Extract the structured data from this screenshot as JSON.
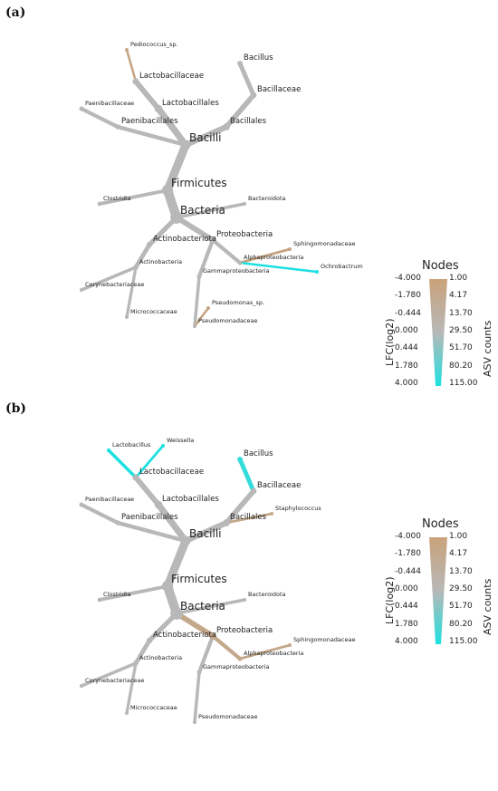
{
  "panels": [
    {
      "label": "(a)",
      "tree": {
        "taxa": [
          {
            "n": "Bacteria",
            "lfc": 0,
            "asv": 115
          },
          {
            "n": "Firmicutes",
            "lfc": 0,
            "asv": 90
          },
          {
            "n": "Bacilli",
            "lfc": 0,
            "asv": 70
          },
          {
            "n": "Lactobacillales",
            "lfc": 0,
            "asv": 40
          },
          {
            "n": "Lactobacillaceae",
            "lfc": 0,
            "asv": 25
          },
          {
            "n": "Bacillales",
            "lfc": 0,
            "asv": 30
          },
          {
            "n": "Bacillaceae",
            "lfc": 0,
            "asv": 22
          },
          {
            "n": "Bacillus",
            "lfc": 0,
            "asv": 15
          },
          {
            "n": "Paenibacillales",
            "lfc": 0,
            "asv": 12
          },
          {
            "n": "Paenibacillaceae",
            "lfc": 0,
            "asv": 10
          },
          {
            "n": "Clostridia",
            "lfc": 0,
            "asv": 8
          },
          {
            "n": "Proteobacteria",
            "lfc": 0,
            "asv": 25
          },
          {
            "n": "Actinobacteriota",
            "lfc": 0,
            "asv": 18
          },
          {
            "n": "Actinobacteria",
            "lfc": 0,
            "asv": 14
          },
          {
            "n": "Alphaproteobacteria",
            "lfc": 0,
            "asv": 10
          },
          {
            "n": "Gammaproteobacteria",
            "lfc": 0,
            "asv": 10
          },
          {
            "n": "Bacteroidota",
            "lfc": 0,
            "asv": 6
          },
          {
            "n": "Corynebacteriaceae",
            "lfc": 0,
            "asv": 6
          },
          {
            "n": "Micrococcaceae",
            "lfc": 0,
            "asv": 5
          },
          {
            "n": "Pseudomonadaceae",
            "lfc": 0,
            "asv": 6
          },
          {
            "n": "Sphingomonadaceae",
            "lfc": -3,
            "asv": 3
          },
          {
            "n": "Pediococcus_sp.",
            "lfc": -3,
            "asv": 2
          },
          {
            "n": "Pseudomonas_sp.",
            "lfc": -3,
            "asv": 2
          },
          {
            "n": "Ochrobactrum",
            "lfc": 4,
            "asv": 2
          }
        ]
      },
      "legend": {
        "title": "Nodes",
        "lfc_label": "LFC(log2)",
        "asv_label": "ASV counts",
        "lfc_ticks": [
          "-4.000",
          "-1.780",
          "-0.444",
          "0.000",
          "0.444",
          "1.780",
          "4.000"
        ],
        "asv_ticks": [
          "1.00",
          "4.17",
          "13.70",
          "29.50",
          "51.70",
          "80.20",
          "115.00"
        ]
      }
    },
    {
      "label": "(b)",
      "tree": {
        "taxa": [
          {
            "n": "Bacteria",
            "lfc": 0,
            "asv": 115
          },
          {
            "n": "Firmicutes",
            "lfc": 0,
            "asv": 90
          },
          {
            "n": "Bacilli",
            "lfc": 0,
            "asv": 70
          },
          {
            "n": "Lactobacillales",
            "lfc": 0,
            "asv": 40
          },
          {
            "n": "Lactobacillaceae",
            "lfc": 0,
            "asv": 25
          },
          {
            "n": "Bacillales",
            "lfc": 0,
            "asv": 30
          },
          {
            "n": "Bacillaceae",
            "lfc": 0,
            "asv": 22
          },
          {
            "n": "Bacillus",
            "lfc": 3,
            "asv": 15
          },
          {
            "n": "Paenibacillales",
            "lfc": 0,
            "asv": 12
          },
          {
            "n": "Paenibacillaceae",
            "lfc": 0,
            "asv": 10
          },
          {
            "n": "Clostridia",
            "lfc": 0,
            "asv": 8
          },
          {
            "n": "Proteobacteria",
            "lfc": -2,
            "asv": 25
          },
          {
            "n": "Actinobacteriota",
            "lfc": 0,
            "asv": 18
          },
          {
            "n": "Actinobacteria",
            "lfc": 0,
            "asv": 14
          },
          {
            "n": "Alphaproteobacteria",
            "lfc": -2,
            "asv": 10
          },
          {
            "n": "Gammaproteobacteria",
            "lfc": 0,
            "asv": 10
          },
          {
            "n": "Bacteroidota",
            "lfc": 0,
            "asv": 6
          },
          {
            "n": "Corynebacteriaceae",
            "lfc": 0,
            "asv": 6
          },
          {
            "n": "Micrococcaceae",
            "lfc": 0,
            "asv": 5
          },
          {
            "n": "Pseudomonadaceae",
            "lfc": 0,
            "asv": 6
          },
          {
            "n": "Lactobacillus",
            "lfc": 4,
            "asv": 6
          },
          {
            "n": "Weissella",
            "lfc": 4,
            "asv": 3
          },
          {
            "n": "Staphylococcus",
            "lfc": -2,
            "asv": 3
          },
          {
            "n": "Sphingomonadaceae",
            "lfc": -2,
            "asv": 3
          }
        ]
      },
      "legend": {
        "title": "Nodes",
        "lfc_label": "LFC(log2)",
        "asv_label": "ASV counts",
        "lfc_ticks": [
          "-4.000",
          "-1.780",
          "-0.444",
          "0.000",
          "0.444",
          "1.780",
          "4.000"
        ],
        "asv_ticks": [
          "1.00",
          "4.17",
          "13.70",
          "29.50",
          "51.70",
          "80.20",
          "115.00"
        ]
      }
    }
  ],
  "colors": {
    "negative": "#c9a27a",
    "neutral": "#b8b8b8",
    "positive": "#1fe0e0",
    "text": "#222222"
  }
}
